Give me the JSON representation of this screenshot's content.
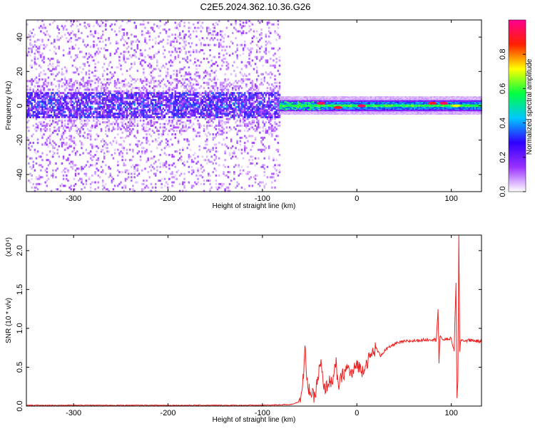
{
  "title": "C2E5.2024.362.10.36.G26",
  "chart_data": [
    {
      "type": "heatmap",
      "xlabel": "Height of straight line (km)",
      "ylabel": "Frequency (Hz)",
      "xlim": [
        -350,
        132
      ],
      "ylim": [
        -50,
        50
      ],
      "x_ticks": [
        "-300",
        "-200",
        "-100",
        "0",
        "100"
      ],
      "x_tick_values": [
        -300,
        -200,
        -100,
        0,
        100
      ],
      "y_ticks": [
        "-40",
        "-20",
        "0",
        "20",
        "40"
      ],
      "y_tick_values": [
        -40,
        -20,
        0,
        20,
        40
      ],
      "colorbar": {
        "label": "Normalized spectral amplitude",
        "range": [
          0,
          1
        ],
        "ticks": [
          "0.0",
          "0.2",
          "0.4",
          "0.6",
          "0.8"
        ],
        "tick_values": [
          0,
          0.2,
          0.4,
          0.6,
          0.8
        ],
        "colors": [
          "#ffffff",
          "#9b30ff",
          "#3000ff",
          "#00c8ff",
          "#00ff40",
          "#ffff00",
          "#ff2000",
          "#ff0090"
        ]
      },
      "regions": [
        {
          "x_range": [
            -350,
            -82
          ],
          "description_level": "noise",
          "center_hz": 0,
          "core_halfwidth_hz": 8,
          "spread_halfwidth_hz": 50,
          "amplitude": 0.18
        },
        {
          "x_range": [
            -82,
            132
          ],
          "description_level": "signal",
          "center_hz": 0,
          "core_halfwidth_hz": 3,
          "amplitude": 0.6
        }
      ],
      "hotspots": [
        {
          "x": -38,
          "y": 1.5,
          "amplitude": 0.95
        },
        {
          "x": -20,
          "y": -1,
          "amplitude": 0.9
        },
        {
          "x": 5,
          "y": 0,
          "amplitude": 0.95
        },
        {
          "x": 80,
          "y": 1.5,
          "amplitude": 0.9
        },
        {
          "x": 92,
          "y": 1.5,
          "amplitude": 0.95
        },
        {
          "x": 105,
          "y": 0,
          "amplitude": 0.7
        }
      ]
    },
    {
      "type": "line",
      "xlabel": "Height of straight line (km)",
      "ylabel": "SNR (10 * v/v)",
      "multiplier": "(x10⁴)",
      "xlim": [
        -350,
        132
      ],
      "ylim": [
        0,
        2.2
      ],
      "x_ticks": [
        "-300",
        "-200",
        "-100",
        "0",
        "100"
      ],
      "x_tick_values": [
        -300,
        -200,
        -100,
        0,
        100
      ],
      "y_ticks": [
        "0.0",
        "0.5",
        "1.0",
        "1.5",
        "2.0"
      ],
      "y_tick_values": [
        0,
        0.5,
        1.0,
        1.5,
        2.0
      ],
      "series": [
        {
          "color": "#ee2222",
          "x": [
            -350,
            -300,
            -250,
            -200,
            -150,
            -100,
            -70,
            -62,
            -58,
            -56,
            -55,
            -53,
            -50,
            -45,
            -40,
            -38,
            -35,
            -30,
            -25,
            -22,
            -20,
            -15,
            -10,
            -5,
            0,
            5,
            10,
            15,
            20,
            25,
            30,
            40,
            50,
            60,
            70,
            80,
            84,
            86,
            87,
            88,
            90,
            95,
            100,
            103,
            105,
            106,
            107,
            108,
            109,
            110,
            115,
            120,
            125,
            132
          ],
          "y": [
            0.01,
            0.01,
            0.01,
            0.01,
            0.01,
            0.01,
            0.02,
            0.05,
            0.2,
            0.5,
            0.78,
            0.3,
            0.2,
            0.1,
            0.45,
            0.55,
            0.2,
            0.3,
            0.35,
            0.55,
            0.25,
            0.4,
            0.5,
            0.4,
            0.55,
            0.45,
            0.55,
            0.65,
            0.75,
            0.65,
            0.72,
            0.8,
            0.83,
            0.84,
            0.85,
            0.86,
            0.85,
            1.25,
            0.55,
            0.9,
            0.86,
            0.86,
            0.87,
            0.7,
            1.6,
            0.1,
            0.3,
            2.2,
            0.7,
            0.85,
            0.84,
            0.85,
            0.84,
            0.83
          ]
        }
      ]
    }
  ]
}
